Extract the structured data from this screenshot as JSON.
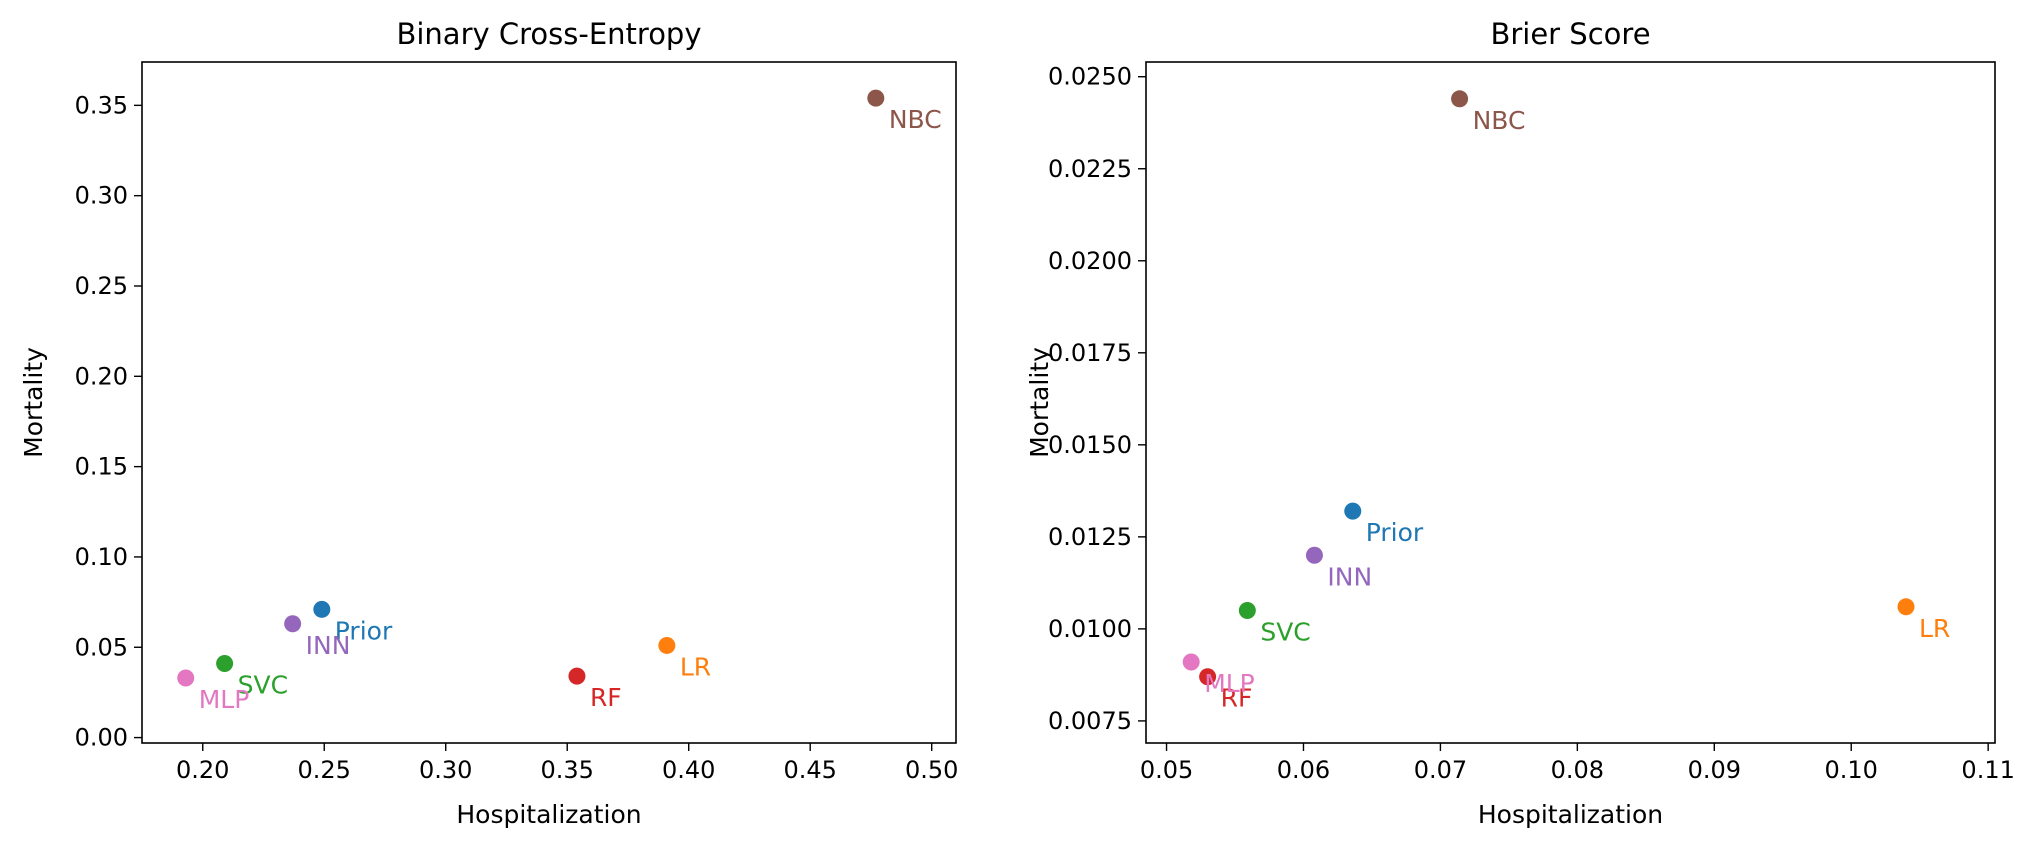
{
  "chart_data": [
    {
      "type": "scatter",
      "title": "Binary Cross-Entropy",
      "xlabel": "Hospitalization",
      "ylabel": "Mortality",
      "xlim": [
        0.175,
        0.51
      ],
      "ylim": [
        -0.003,
        0.374
      ],
      "xticks": [
        0.2,
        0.25,
        0.3,
        0.35,
        0.4,
        0.45,
        0.5
      ],
      "yticks": [
        0.0,
        0.05,
        0.1,
        0.15,
        0.2,
        0.25,
        0.3,
        0.35
      ],
      "xtick_labels": [
        "0.20",
        "0.25",
        "0.30",
        "0.35",
        "0.40",
        "0.45",
        "0.50"
      ],
      "ytick_labels": [
        "0.00",
        "0.05",
        "0.10",
        "0.15",
        "0.20",
        "0.25",
        "0.30",
        "0.35"
      ],
      "grid": false,
      "points": [
        {
          "label": "Prior",
          "x": 0.249,
          "y": 0.071,
          "color": "#1f77b4"
        },
        {
          "label": "LR",
          "x": 0.391,
          "y": 0.051,
          "color": "#ff7f0e"
        },
        {
          "label": "SVC",
          "x": 0.209,
          "y": 0.041,
          "color": "#2ca02c"
        },
        {
          "label": "RF",
          "x": 0.354,
          "y": 0.034,
          "color": "#d62728"
        },
        {
          "label": "INN",
          "x": 0.237,
          "y": 0.063,
          "color": "#9467bd"
        },
        {
          "label": "NBC",
          "x": 0.477,
          "y": 0.354,
          "color": "#8c564b"
        },
        {
          "label": "MLP",
          "x": 0.193,
          "y": 0.033,
          "color": "#e377c2"
        }
      ]
    },
    {
      "type": "scatter",
      "title": "Brier Score",
      "xlabel": "Hospitalization",
      "ylabel": "Mortality",
      "xlim": [
        0.0485,
        0.1105
      ],
      "ylim": [
        0.0069,
        0.0254
      ],
      "xticks": [
        0.05,
        0.06,
        0.07,
        0.08,
        0.09,
        0.1,
        0.11
      ],
      "yticks": [
        0.0075,
        0.01,
        0.0125,
        0.015,
        0.0175,
        0.02,
        0.0225,
        0.025
      ],
      "xtick_labels": [
        "0.05",
        "0.06",
        "0.07",
        "0.08",
        "0.09",
        "0.10",
        "0.11"
      ],
      "ytick_labels": [
        "0.0075",
        "0.0100",
        "0.0125",
        "0.0150",
        "0.0175",
        "0.0200",
        "0.0225",
        "0.0250"
      ],
      "grid": false,
      "points": [
        {
          "label": "Prior",
          "x": 0.0636,
          "y": 0.0132,
          "color": "#1f77b4"
        },
        {
          "label": "LR",
          "x": 0.104,
          "y": 0.0106,
          "color": "#ff7f0e"
        },
        {
          "label": "SVC",
          "x": 0.0559,
          "y": 0.0105,
          "color": "#2ca02c"
        },
        {
          "label": "RF",
          "x": 0.053,
          "y": 0.0087,
          "color": "#d62728"
        },
        {
          "label": "INN",
          "x": 0.0608,
          "y": 0.012,
          "color": "#9467bd"
        },
        {
          "label": "NBC",
          "x": 0.0714,
          "y": 0.0244,
          "color": "#8c564b"
        },
        {
          "label": "MLP",
          "x": 0.0518,
          "y": 0.0091,
          "color": "#e377c2"
        }
      ]
    }
  ]
}
